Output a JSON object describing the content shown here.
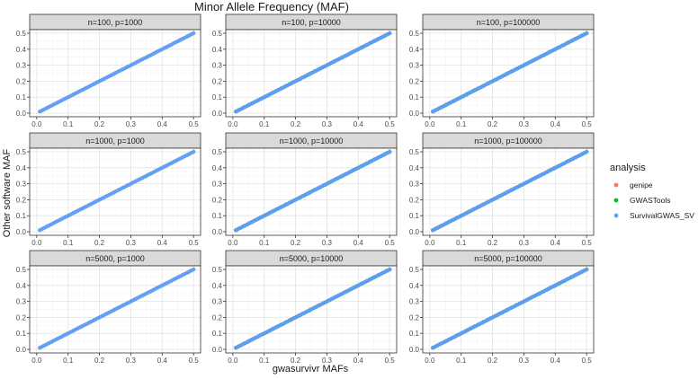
{
  "chart_data": {
    "type": "scatter",
    "title": "Minor Allele Frequency (MAF)",
    "xlabel": "gwasurvivr MAFs",
    "ylabel": "Other software MAF",
    "xlim": [
      0,
      0.5
    ],
    "ylim": [
      0,
      0.5
    ],
    "x_ticks": [
      "0.0",
      "0.1",
      "0.2",
      "0.3",
      "0.4",
      "0.5"
    ],
    "y_ticks": [
      "0.0",
      "0.1",
      "0.2",
      "0.3",
      "0.4",
      "0.5"
    ],
    "grid": true,
    "legend": {
      "title": "analysis",
      "position": "right",
      "entries": [
        {
          "name": "genipe",
          "color": "#F8766D"
        },
        {
          "name": "GWASTools",
          "color": "#00BA38"
        },
        {
          "name": "SurvivalGWAS_SV",
          "color": "#619CFF"
        }
      ]
    },
    "panels": [
      {
        "label": "n=100, p=1000",
        "x_range": [
          0.01,
          0.5
        ],
        "relation": "y = x"
      },
      {
        "label": "n=100, p=10000",
        "x_range": [
          0.01,
          0.5
        ],
        "relation": "y = x"
      },
      {
        "label": "n=100, p=100000",
        "x_range": [
          0.01,
          0.5
        ],
        "relation": "y = x"
      },
      {
        "label": "n=1000, p=1000",
        "x_range": [
          0.01,
          0.5
        ],
        "relation": "y = x"
      },
      {
        "label": "n=1000, p=10000",
        "x_range": [
          0.01,
          0.5
        ],
        "relation": "y = x"
      },
      {
        "label": "n=1000, p=100000",
        "x_range": [
          0.01,
          0.5
        ],
        "relation": "y = x"
      },
      {
        "label": "n=5000, p=1000",
        "x_range": [
          0.01,
          0.5
        ],
        "relation": "y = x"
      },
      {
        "label": "n=5000, p=10000",
        "x_range": [
          0.01,
          0.5
        ],
        "relation": "y = x"
      },
      {
        "label": "n=5000, p=100000",
        "x_range": [
          0.01,
          0.5
        ],
        "relation": "y = x"
      }
    ]
  }
}
